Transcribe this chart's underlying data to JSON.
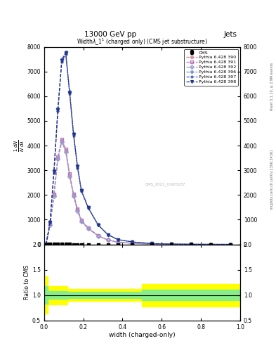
{
  "title_top": "13000 GeV pp",
  "title_right": "Jets",
  "plot_title": "Widthλ_1¹(charged only) (CMS jet substructure)",
  "xlabel": "width (charged-only)",
  "ylabel_ratio": "Ratio to CMS",
  "right_label_top": "Rivet 3.1.10, ≥ 2.9M events",
  "right_label_bottom": "mcplots.cern.ch [arXiv:1306.3436]",
  "watermark": "CMS_2021_I1920187",
  "x_bins": [
    0.0,
    0.02,
    0.04,
    0.06,
    0.08,
    0.1,
    0.12,
    0.14,
    0.16,
    0.18,
    0.2,
    0.25,
    0.3,
    0.35,
    0.4,
    0.5,
    0.6,
    0.7,
    0.8,
    0.9,
    1.0
  ],
  "cms_values": [
    0,
    5,
    10,
    15,
    10,
    5,
    3,
    2,
    1,
    1,
    0.5,
    0.3,
    0.2,
    0.1,
    0.05,
    0.02,
    0.01,
    0.005,
    0.002,
    0.001
  ],
  "cms_errors": [
    0,
    2,
    3,
    4,
    3,
    2,
    1,
    0.5,
    0.3,
    0.3,
    0.2,
    0.1,
    0.05,
    0.03,
    0.02,
    0.01,
    0.005,
    0.002,
    0.001,
    0.0005
  ],
  "pythia_390": [
    0,
    800,
    2000,
    3500,
    4200,
    3800,
    2800,
    2000,
    1400,
    950,
    650,
    350,
    180,
    90,
    45,
    15,
    6,
    2.5,
    1,
    0.4
  ],
  "pythia_391": [
    0,
    820,
    2050,
    3550,
    4250,
    3850,
    2850,
    2050,
    1450,
    980,
    670,
    360,
    185,
    93,
    47,
    16,
    6.5,
    2.7,
    1.1,
    0.45
  ],
  "pythia_392": [
    0,
    780,
    1950,
    3450,
    4150,
    3750,
    2750,
    1950,
    1350,
    920,
    630,
    340,
    175,
    87,
    43,
    14,
    5.5,
    2.3,
    0.9,
    0.35
  ],
  "pythia_396": [
    10,
    900,
    3000,
    5500,
    7500,
    7800,
    6200,
    4500,
    3200,
    2200,
    1500,
    800,
    400,
    200,
    100,
    35,
    14,
    6,
    2.5,
    1.0
  ],
  "pythia_397": [
    10,
    880,
    2900,
    5400,
    7400,
    7700,
    6100,
    4400,
    3100,
    2150,
    1470,
    785,
    392,
    196,
    98,
    34,
    13.5,
    5.8,
    2.4,
    0.95
  ],
  "pythia_398": [
    10,
    890,
    2950,
    5450,
    7450,
    7750,
    6150,
    4450,
    3150,
    2175,
    1485,
    792,
    396,
    198,
    99,
    34.5,
    13.8,
    5.9,
    2.45,
    0.97
  ],
  "color_390": "#cc8899",
  "color_391": "#bb77bb",
  "color_392": "#9999cc",
  "color_396": "#7799cc",
  "color_397": "#5566bb",
  "color_398": "#223388",
  "marker_390": "o",
  "marker_391": "s",
  "marker_392": "D",
  "marker_396": "P",
  "marker_397": "*",
  "marker_398": "v",
  "ylim_main": [
    0,
    8000
  ],
  "yticks_main": [
    0,
    1000,
    2000,
    3000,
    4000,
    5000,
    6000,
    7000,
    8000
  ],
  "ylim_ratio": [
    0.5,
    2.0
  ],
  "yticks_ratio": [
    0.5,
    1.0,
    1.5,
    2.0
  ],
  "xlim": [
    0.0,
    1.0
  ]
}
